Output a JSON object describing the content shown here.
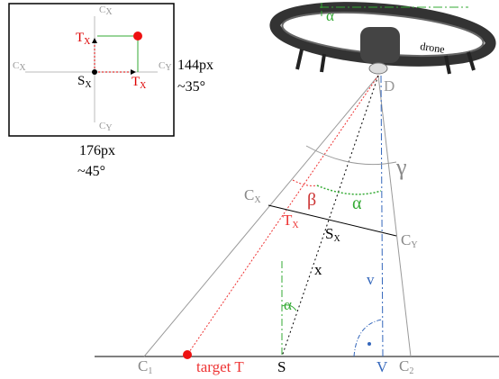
{
  "inset": {
    "labels": [
      {
        "text": "C",
        "sub": "X"
      },
      {
        "text": "C",
        "sub": "X"
      },
      {
        "text": "C",
        "sub": "Y"
      },
      {
        "text": "C",
        "sub": "Y"
      },
      {
        "text": "T",
        "sub": "X"
      },
      {
        "text": "S",
        "sub": "X"
      },
      {
        "text": "T",
        "sub": "X"
      }
    ],
    "height_label": "144px",
    "height_angle": "~35°",
    "width_label": "176px",
    "width_angle": "~45°"
  },
  "main": {
    "labels": [
      {
        "text": "α"
      },
      {
        "text": "drone"
      },
      {
        "text": "D"
      },
      {
        "text": "γ"
      },
      {
        "text": "C",
        "sub": "X"
      },
      {
        "text": "β"
      },
      {
        "text": "α"
      },
      {
        "text": "T",
        "sub": "X"
      },
      {
        "text": "S",
        "sub": "X"
      },
      {
        "text": "C",
        "sub": "Y"
      },
      {
        "text": "x"
      },
      {
        "text": "v"
      },
      {
        "text": "α"
      },
      {
        "text": "C",
        "sub": "1"
      },
      {
        "text": "target T"
      },
      {
        "text": "S"
      },
      {
        "text": "V"
      },
      {
        "text": "C",
        "sub": "2"
      }
    ]
  }
}
